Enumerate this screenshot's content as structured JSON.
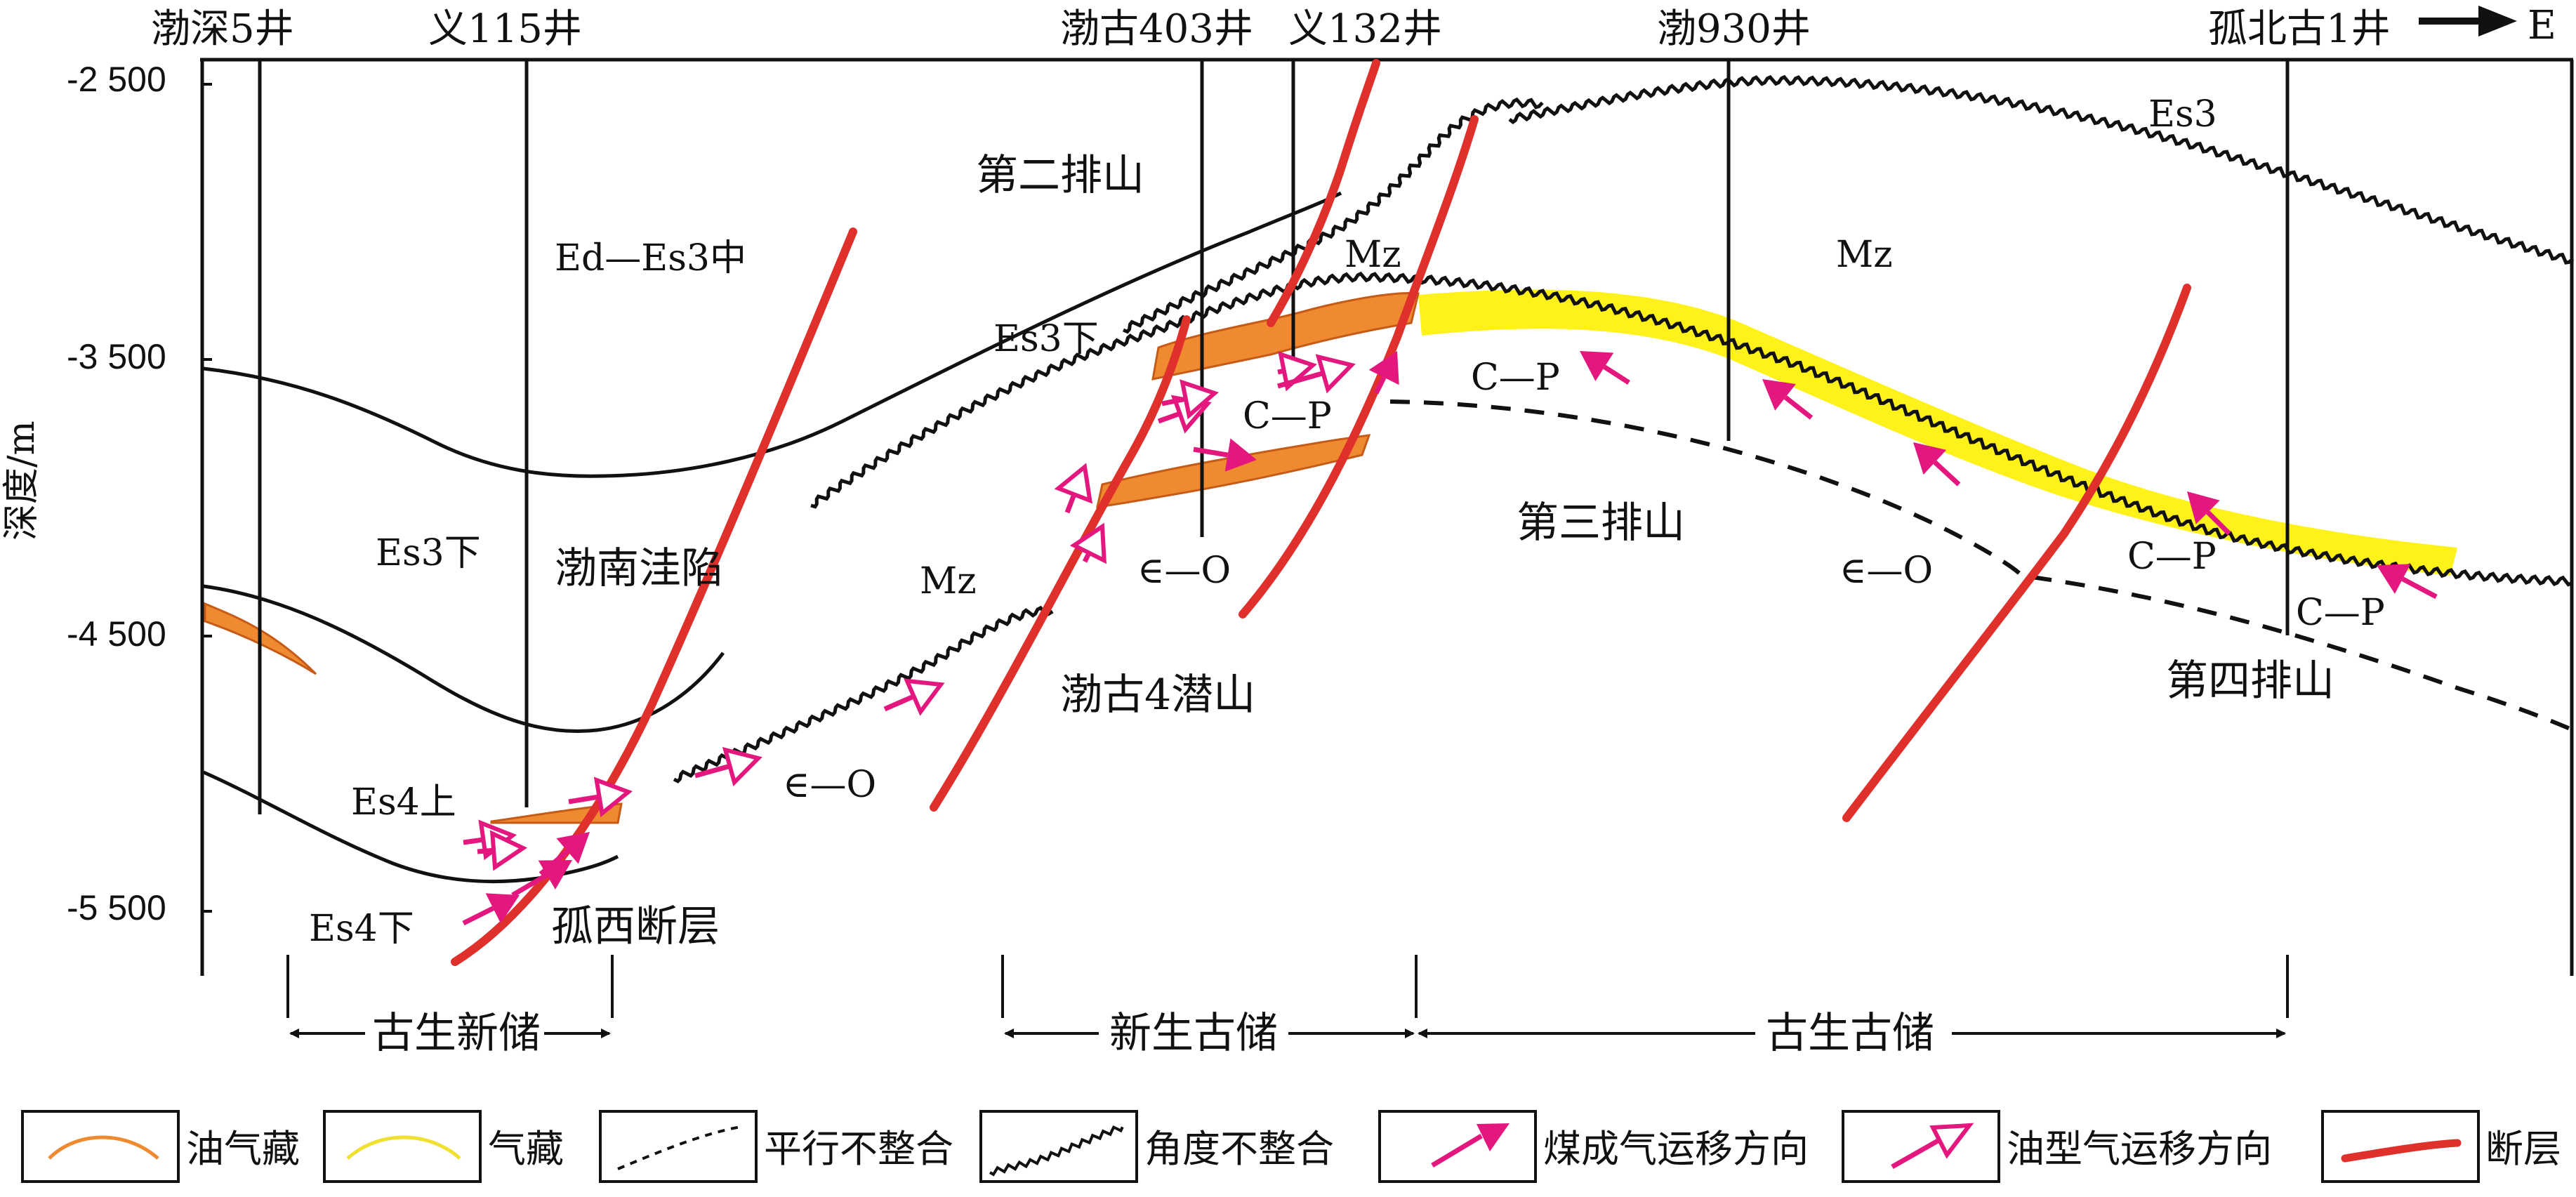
{
  "wells": [
    {
      "label": "渤深5井"
    },
    {
      "label": "义115井"
    },
    {
      "label": "渤古403井"
    },
    {
      "label": "义132井"
    },
    {
      "label": "渤930井"
    },
    {
      "label": "孤北古1井"
    }
  ],
  "direction_label": "E",
  "depth_axis": {
    "label": "深度/m",
    "ticks": [
      "-2 500",
      "-3 500",
      "-4 500",
      "-5 500"
    ]
  },
  "strata_labels": {
    "ed_es3_mid": "Ed—Es3中",
    "es3_lower_left": "Es3下",
    "es3_lower_mid": "Es3下",
    "es4_upper": "Es4上",
    "es4_lower": "Es4下",
    "es3_right": "Es3",
    "mz_1": "Mz",
    "mz_2": "Mz",
    "mz_3": "Mz",
    "cp_1": "C—P",
    "cp_2": "C—P",
    "cp_3": "C—P",
    "cp_4": "C—P",
    "eo_1": "∈—O",
    "eo_2": "∈—O",
    "eo_3": "∈—O"
  },
  "region_labels": {
    "second_row": "第二排山",
    "bonan_sag": "渤南洼陷",
    "bogu4_buried_hill": "渤古4潜山",
    "third_row": "第三排山",
    "fourth_row": "第四排山",
    "guxi_fault": "孤西断层"
  },
  "reservoir_spans": [
    {
      "label": "古生新储"
    },
    {
      "label": "新生古储"
    },
    {
      "label": "古生古储"
    }
  ],
  "legend": [
    {
      "label": "油气藏",
      "icon": "oil-gas-reservoir-icon",
      "color": "#f08a30"
    },
    {
      "label": "气藏",
      "icon": "gas-reservoir-icon",
      "color": "#fff21a"
    },
    {
      "label": "平行不整合",
      "icon": "parallel-unconformity-icon"
    },
    {
      "label": "角度不整合",
      "icon": "angular-unconformity-icon"
    },
    {
      "label": "煤成气运移方向",
      "icon": "coal-gas-migration-arrow-icon",
      "color": "#e3177d"
    },
    {
      "label": "油型气运移方向",
      "icon": "oil-gas-migration-arrow-icon",
      "color": "#e3177d"
    },
    {
      "label": "断层",
      "icon": "fault-icon",
      "color": "#e0302c"
    }
  ]
}
